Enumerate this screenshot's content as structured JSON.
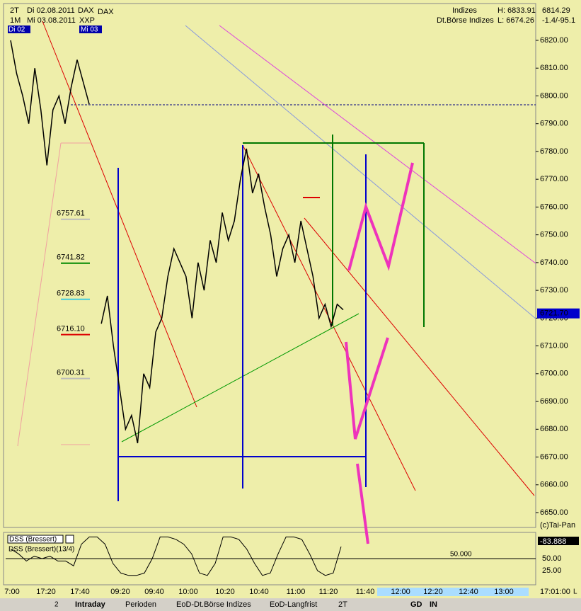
{
  "header": {
    "period": "2T",
    "date1": "Di 02.08.2011",
    "symbol1": "DAX",
    "symbol2": "DAX",
    "range": "1M",
    "date2": "Mi 03.08.2011",
    "symbol3": "XXP",
    "marker1": "Di 02",
    "marker2": "Mi 03",
    "group": "Indizes",
    "high": "H: 6833.91",
    "last": "6814.29",
    "exchange": "Dt.Börse Indizes",
    "low": "L: 6674.26",
    "change": "-1.4/-95.1"
  },
  "price_axis": {
    "ticks": [
      {
        "value": 6820,
        "label": "6820.00"
      },
      {
        "value": 6810,
        "label": "6810.00"
      },
      {
        "value": 6800,
        "label": "6800.00"
      },
      {
        "value": 6790,
        "label": "6790.00"
      },
      {
        "value": 6780,
        "label": "6780.00"
      },
      {
        "value": 6770,
        "label": "6770.00"
      },
      {
        "value": 6760,
        "label": "6760.00"
      },
      {
        "value": 6750,
        "label": "6750.00"
      },
      {
        "value": 6740,
        "label": "6740.00"
      },
      {
        "value": 6730,
        "label": "6730.00"
      },
      {
        "value": 6720,
        "label": "6720.00"
      },
      {
        "value": 6710,
        "label": "6710.00"
      },
      {
        "value": 6700,
        "label": "6700.00"
      },
      {
        "value": 6690,
        "label": "6690.00"
      },
      {
        "value": 6680,
        "label": "6680.00"
      },
      {
        "value": 6670,
        "label": "6670.00"
      },
      {
        "value": 6660,
        "label": "6660.00"
      },
      {
        "value": 6650,
        "label": "6650.00"
      }
    ],
    "current": {
      "value": 6721.7,
      "label": "6721.70"
    },
    "copyright": "(c)Tai-Pan"
  },
  "price": {
    "values": [
      6820,
      6808,
      6800,
      6790,
      6810,
      6795,
      6775,
      6795,
      6800,
      6790,
      6803,
      6813,
      6805,
      6797,
      null,
      6718,
      6728,
      6710,
      6695,
      6680,
      6685,
      6675,
      6700,
      6695,
      6715,
      6720,
      6735,
      6745,
      6740,
      6735,
      6720,
      6740,
      6730,
      6748,
      6740,
      6758,
      6748,
      6755,
      6770,
      6781,
      6765,
      6772,
      6760,
      6750,
      6735,
      6745,
      6750,
      6740,
      6755,
      6745,
      6735,
      6720,
      6725,
      6717,
      6725,
      6723
    ]
  },
  "levels": [
    {
      "value": 6757.61,
      "label": "6757.61"
    },
    {
      "value": 6741.82,
      "label": "6741.82"
    },
    {
      "value": 6728.83,
      "label": "6728.83"
    },
    {
      "value": 6716.1,
      "label": "6716.10"
    },
    {
      "value": 6700.31,
      "label": "6700.31"
    }
  ],
  "indicator": {
    "title": "DSS (Bressert)",
    "legend": "DSS (Bressert)(13/4)",
    "current": "-83.888",
    "line_label": "50.000",
    "line": 50,
    "ticks": [
      {
        "value": 50,
        "label": "50.00"
      },
      {
        "value": 25,
        "label": "25.00"
      }
    ],
    "values": [
      70,
      60,
      45,
      55,
      50,
      55,
      45,
      45,
      35,
      80,
      95,
      95,
      80,
      40,
      20,
      15,
      15,
      20,
      50,
      95,
      95,
      90,
      80,
      60,
      20,
      15,
      40,
      95,
      95,
      90,
      70,
      40,
      15,
      20,
      60,
      95,
      95,
      90,
      60,
      25,
      15,
      20,
      75
    ]
  },
  "time_axis": [
    "7:00",
    "17:20",
    "17:40",
    "09:20",
    "09:40",
    "10:00",
    "10:20",
    "10:40",
    "11:00",
    "11:20",
    "11:40",
    "12:00",
    "12:20",
    "12:40",
    "13:00"
  ],
  "clock": "17:01:00",
  "scale_mode": "L",
  "tabs": [
    "Intraday",
    "Perioden",
    "EoD-Dt.Börse Indizes",
    "EoD-Langfrist"
  ],
  "toolbar": {
    "page": "2",
    "period": "2T",
    "gd": "GD",
    "in": "IN"
  }
}
